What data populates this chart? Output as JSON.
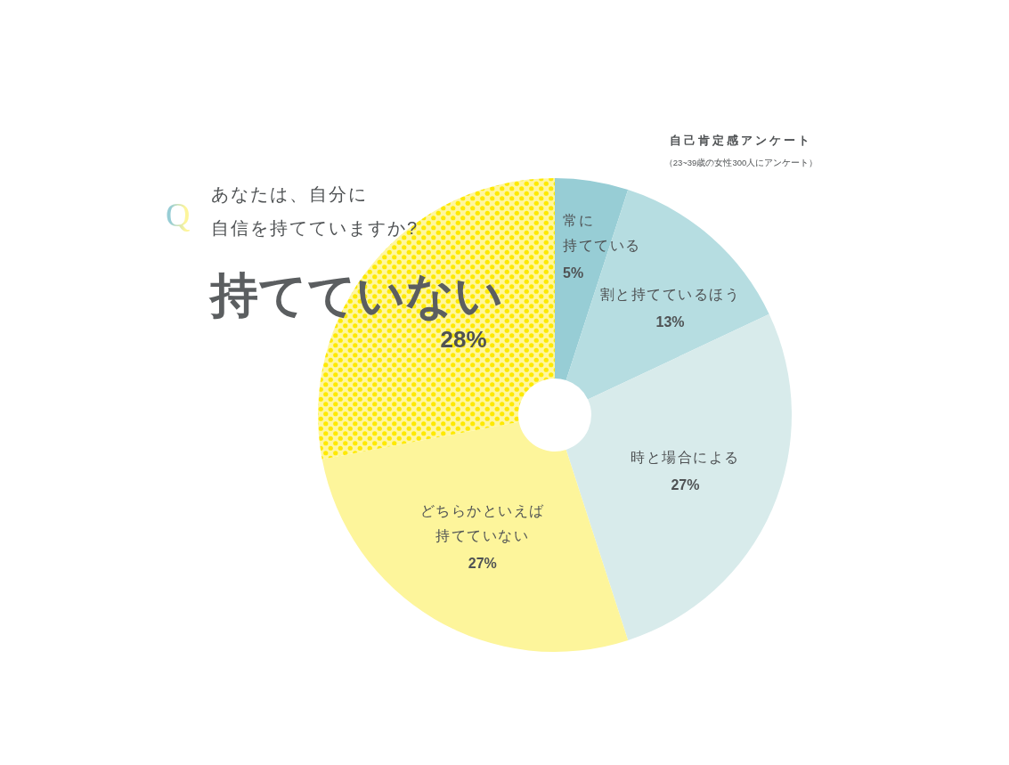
{
  "chart_data": {
    "type": "donut",
    "title": "自己肯定感アンケート",
    "subtitle": "（23~39歳の女性300人にアンケート）",
    "annotations": [
      "Q",
      "あなたは、自分に自信を持てていますか?"
    ],
    "categories": [
      "常に持てている",
      "割と持てているほう",
      "時と場合による",
      "どちらかといえば持てていない",
      "持てていない"
    ],
    "values": [
      5,
      13,
      27,
      27,
      28
    ],
    "value_labels": [
      "5%",
      "13%",
      "27%",
      "27%",
      "28%"
    ],
    "colors": [
      "#97cdd5",
      "#b6dde1",
      "#d8ebeb",
      "#fdf59b",
      "#fee900"
    ]
  }
}
